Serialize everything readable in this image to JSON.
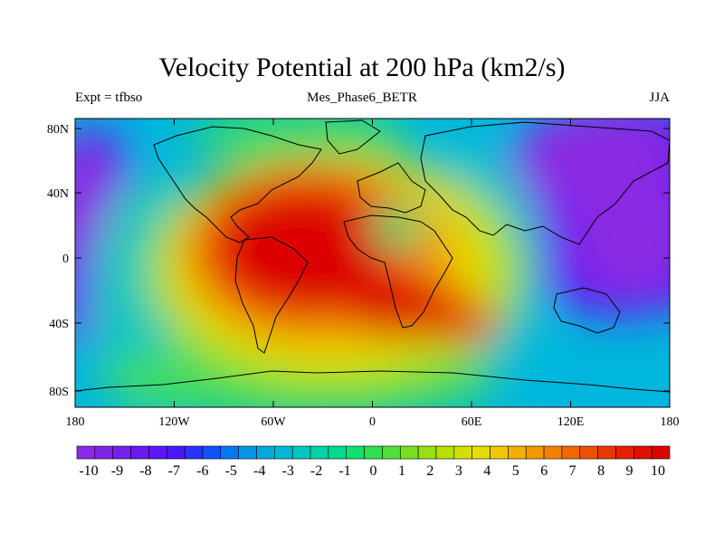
{
  "title": "Velocity Potential at 200 hPa (km2/s)",
  "subtitle_left": "Expt = tfbso",
  "subtitle_center": "Mes_Phase6_BETR",
  "subtitle_right": "JJA",
  "axes": {
    "x_labels": [
      "180",
      "120W",
      "60W",
      "0",
      "60E",
      "120E",
      "180"
    ],
    "y_labels": [
      "80N",
      "40N",
      "0",
      "40S",
      "80S"
    ]
  },
  "colorbar": {
    "labels": [
      "-10",
      "-9",
      "-8",
      "-7",
      "-6",
      "-5",
      "-4",
      "-3",
      "-2",
      "-1",
      "0",
      "1",
      "2",
      "3",
      "4",
      "5",
      "6",
      "7",
      "8",
      "9",
      "10"
    ],
    "colors": [
      "#8a2be2",
      "#7f25e8",
      "#741fee",
      "#6819f4",
      "#5a18fa",
      "#4a18ff",
      "#2a30ff",
      "#1050ff",
      "#0078f0",
      "#0096e6",
      "#00aadc",
      "#00b8d2",
      "#00c8c0",
      "#00d4a8",
      "#00dc8c",
      "#10e070",
      "#30e050",
      "#50e038",
      "#78e020",
      "#98e010",
      "#b8e000",
      "#d2e000",
      "#e6dc00",
      "#f0c800",
      "#f4b000",
      "#f49800",
      "#f48000",
      "#f06800",
      "#ec5000",
      "#e83800",
      "#e42200",
      "#e01000",
      "#dc0000"
    ]
  }
}
